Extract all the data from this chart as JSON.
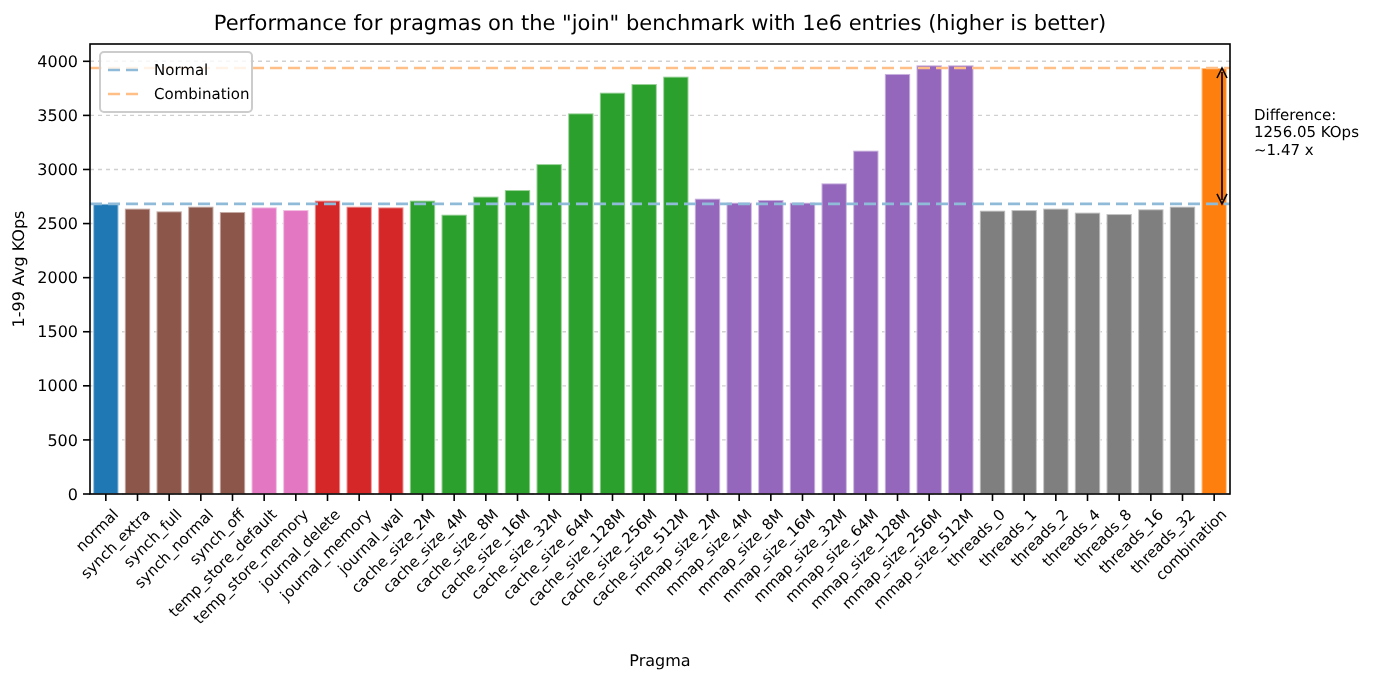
{
  "chart_data": {
    "type": "bar",
    "title": "Performance for pragmas on the \"join\" benchmark with 1e6 entries (higher is better)",
    "xlabel": "Pragma",
    "ylabel": "1-99 Avg KOps",
    "categories": [
      "normal",
      "synch_extra",
      "synch_full",
      "synch_normal",
      "synch_off",
      "temp_store_default",
      "temp_store_memory",
      "journal_delete",
      "journal_memory",
      "journal_wal",
      "cache_size_2M",
      "cache_size_4M",
      "cache_size_8M",
      "cache_size_16M",
      "cache_size_32M",
      "cache_size_64M",
      "cache_size_128M",
      "cache_size_256M",
      "cache_size_512M",
      "mmap_size_2M",
      "mmap_size_4M",
      "mmap_size_8M",
      "mmap_size_16M",
      "mmap_size_32M",
      "mmap_size_64M",
      "mmap_size_128M",
      "mmap_size_256M",
      "mmap_size_512M",
      "threads_0",
      "threads_1",
      "threads_2",
      "threads_4",
      "threads_8",
      "threads_16",
      "threads_32",
      "combination"
    ],
    "values": [
      2682,
      2638,
      2613,
      2656,
      2607,
      2650,
      2625,
      2712,
      2656,
      2650,
      2712,
      2582,
      2749,
      2810,
      3050,
      3519,
      3710,
      3790,
      3858,
      2730,
      2693,
      2718,
      2693,
      2872,
      3174,
      3883,
      3963,
      3963,
      2619,
      2625,
      2638,
      2601,
      2588,
      2632,
      2656,
      3938
    ],
    "colors": [
      "#1f77b4",
      "#8c564b",
      "#8c564b",
      "#8c564b",
      "#8c564b",
      "#e377c2",
      "#e377c2",
      "#d62728",
      "#d62728",
      "#d62728",
      "#2ca02c",
      "#2ca02c",
      "#2ca02c",
      "#2ca02c",
      "#2ca02c",
      "#2ca02c",
      "#2ca02c",
      "#2ca02c",
      "#2ca02c",
      "#9467bd",
      "#9467bd",
      "#9467bd",
      "#9467bd",
      "#9467bd",
      "#9467bd",
      "#9467bd",
      "#9467bd",
      "#9467bd",
      "#7f7f7f",
      "#7f7f7f",
      "#7f7f7f",
      "#7f7f7f",
      "#7f7f7f",
      "#7f7f7f",
      "#7f7f7f",
      "#ff7f0e"
    ],
    "ylim": [
      0,
      4160
    ],
    "yticks": [
      0,
      500,
      1000,
      1500,
      2000,
      2500,
      3000,
      3500,
      4000
    ],
    "grid": "y",
    "legend": "top left",
    "ref_lines": [
      {
        "axis": "y",
        "value": 2682,
        "label": "Normal",
        "color": "#8fbbd9",
        "line_style": "dashed"
      },
      {
        "axis": "y",
        "value": 3938,
        "label": "Combination",
        "color": "#ffbf86",
        "line_style": "dashed"
      }
    ],
    "annotations": [
      "Difference:\n1256.05 KOps\n~1.47 x"
    ]
  }
}
